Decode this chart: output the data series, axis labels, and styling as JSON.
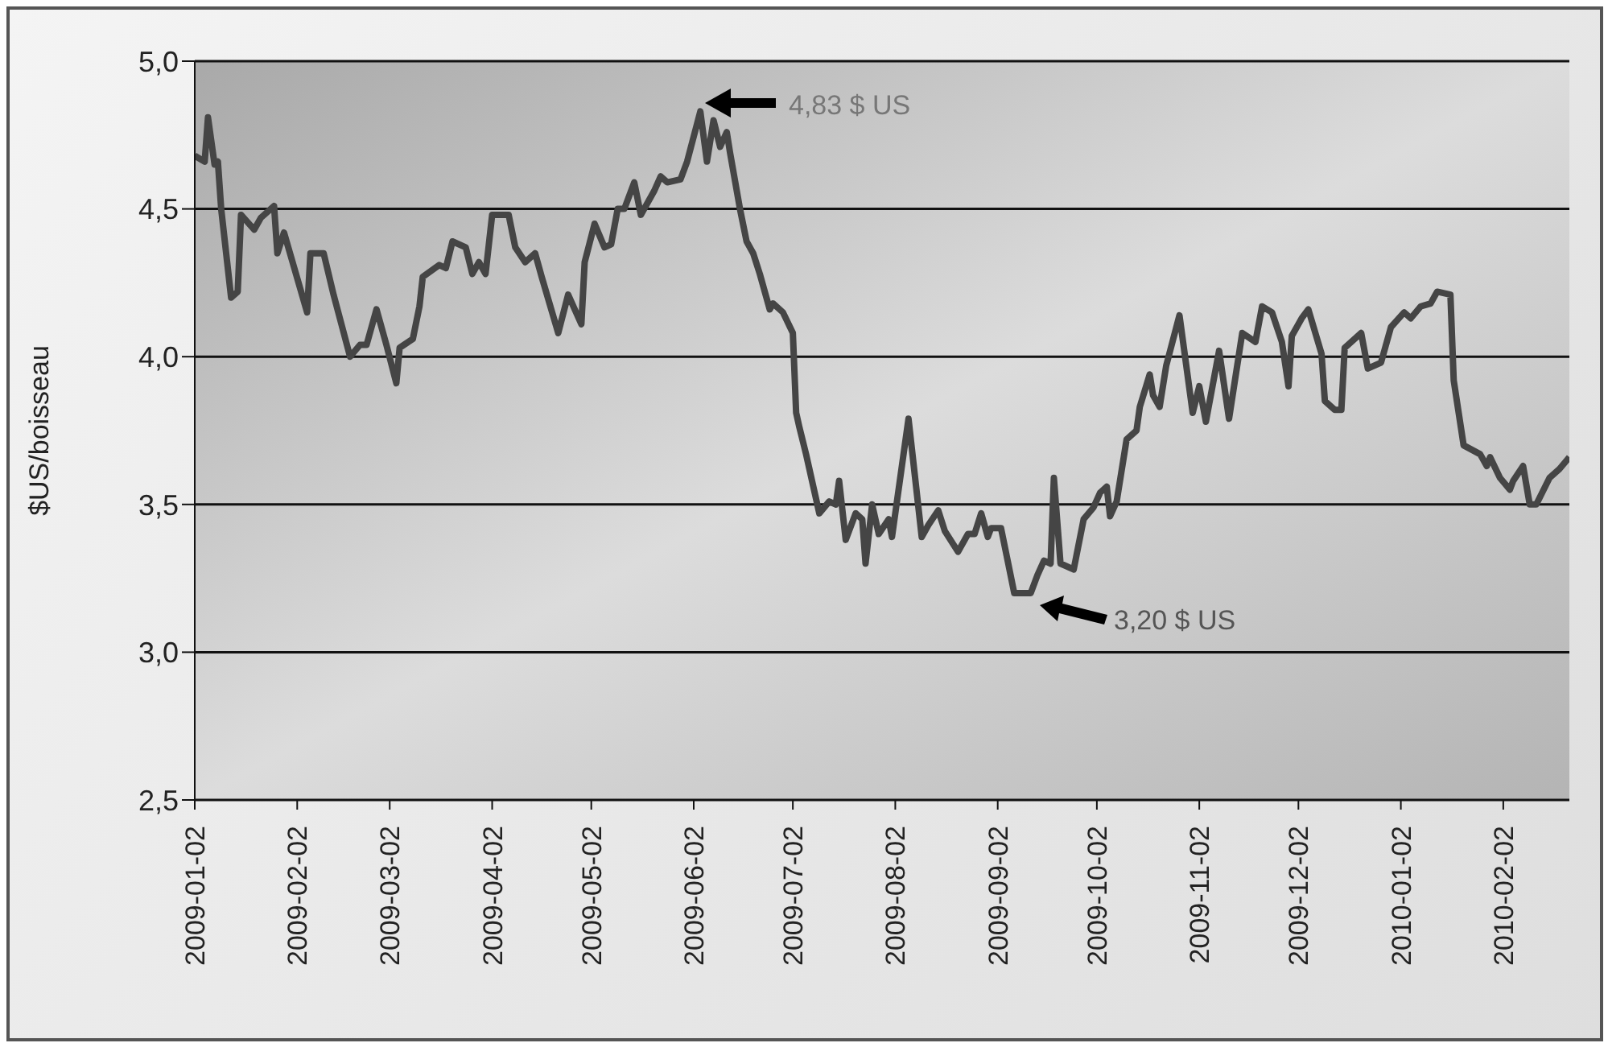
{
  "chart_data": {
    "type": "line",
    "ylabel": "$US/boisseau",
    "x": [
      "2009-01-02",
      "2009-01-05",
      "2009-01-06",
      "2009-01-08",
      "2009-01-09",
      "2009-01-10",
      "2009-01-13",
      "2009-01-15",
      "2009-01-16",
      "2009-01-20",
      "2009-01-22",
      "2009-01-26",
      "2009-01-27",
      "2009-01-29",
      "2009-02-05",
      "2009-02-06",
      "2009-02-10",
      "2009-02-13",
      "2009-02-18",
      "2009-02-21",
      "2009-02-23",
      "2009-02-26",
      "2009-03-01",
      "2009-03-04",
      "2009-03-05",
      "2009-03-09",
      "2009-03-11",
      "2009-03-12",
      "2009-03-17",
      "2009-03-19",
      "2009-03-21",
      "2009-03-25",
      "2009-03-27",
      "2009-03-29",
      "2009-03-31",
      "2009-04-02",
      "2009-04-04",
      "2009-04-07",
      "2009-04-09",
      "2009-04-12",
      "2009-04-15",
      "2009-04-17",
      "2009-04-22",
      "2009-04-25",
      "2009-04-29",
      "2009-04-30",
      "2009-05-03",
      "2009-05-06",
      "2009-05-08",
      "2009-05-10",
      "2009-05-12",
      "2009-05-15",
      "2009-05-17",
      "2009-05-21",
      "2009-05-23",
      "2009-05-25",
      "2009-05-29",
      "2009-05-31",
      "2009-06-04",
      "2009-06-06",
      "2009-06-08",
      "2009-06-10",
      "2009-06-12",
      "2009-06-13",
      "2009-06-16",
      "2009-06-18",
      "2009-06-20",
      "2009-06-22",
      "2009-06-25",
      "2009-06-26",
      "2009-06-29",
      "2009-07-02",
      "2009-07-03",
      "2009-07-04",
      "2009-07-06",
      "2009-07-10",
      "2009-07-13",
      "2009-07-15",
      "2009-07-16",
      "2009-07-18",
      "2009-07-21",
      "2009-07-23",
      "2009-07-24",
      "2009-07-26",
      "2009-07-28",
      "2009-07-31",
      "2009-08-01",
      "2009-08-06",
      "2009-08-10",
      "2009-08-12",
      "2009-08-15",
      "2009-08-17",
      "2009-08-21",
      "2009-08-24",
      "2009-08-26",
      "2009-08-28",
      "2009-08-30",
      "2009-08-31",
      "2009-09-03",
      "2009-09-05",
      "2009-09-07",
      "2009-09-12",
      "2009-09-14",
      "2009-09-16",
      "2009-09-18",
      "2009-09-19",
      "2009-09-21",
      "2009-09-25",
      "2009-09-28",
      "2009-10-01",
      "2009-10-03",
      "2009-10-05",
      "2009-10-06",
      "2009-10-08",
      "2009-10-11",
      "2009-10-14",
      "2009-10-15",
      "2009-10-18",
      "2009-10-19",
      "2009-10-21",
      "2009-10-23",
      "2009-10-27",
      "2009-10-31",
      "2009-11-02",
      "2009-11-04",
      "2009-11-08",
      "2009-11-11",
      "2009-11-15",
      "2009-11-19",
      "2009-11-21",
      "2009-11-24",
      "2009-11-27",
      "2009-11-29",
      "2009-11-30",
      "2009-12-03",
      "2009-12-05",
      "2009-12-09",
      "2009-12-10",
      "2009-12-13",
      "2009-12-15",
      "2009-12-16",
      "2009-12-21",
      "2009-12-23",
      "2009-12-27",
      "2009-12-30",
      "2010-01-03",
      "2010-01-05",
      "2010-01-08",
      "2010-01-11",
      "2010-01-13",
      "2010-01-17",
      "2010-01-18",
      "2010-01-21",
      "2010-01-26",
      "2010-01-28",
      "2010-01-29",
      "2010-02-01",
      "2010-02-04",
      "2010-02-05",
      "2010-02-08",
      "2010-02-10",
      "2010-02-12",
      "2010-02-16",
      "2010-02-19",
      "2010-02-22"
    ],
    "series": [
      {
        "color": "#454545",
        "values": [
          4.68,
          4.66,
          4.81,
          4.65,
          4.66,
          4.5,
          4.2,
          4.22,
          4.48,
          4.43,
          4.47,
          4.51,
          4.35,
          4.42,
          4.15,
          4.35,
          4.35,
          4.21,
          4.0,
          4.04,
          4.04,
          4.16,
          4.04,
          3.91,
          4.03,
          4.06,
          4.17,
          4.27,
          4.31,
          4.3,
          4.39,
          4.37,
          4.28,
          4.32,
          4.28,
          4.48,
          4.48,
          4.48,
          4.37,
          4.32,
          4.35,
          4.27,
          4.08,
          4.21,
          4.11,
          4.32,
          4.45,
          4.37,
          4.38,
          4.5,
          4.5,
          4.59,
          4.48,
          4.56,
          4.61,
          4.59,
          4.6,
          4.66,
          4.83,
          4.66,
          4.8,
          4.71,
          4.76,
          4.69,
          4.5,
          4.39,
          4.35,
          4.28,
          4.16,
          4.18,
          4.15,
          4.08,
          3.81,
          3.76,
          3.67,
          3.47,
          3.51,
          3.5,
          3.58,
          3.38,
          3.47,
          3.45,
          3.3,
          3.5,
          3.4,
          3.45,
          3.39,
          3.79,
          3.39,
          3.43,
          3.48,
          3.41,
          3.34,
          3.4,
          3.4,
          3.47,
          3.39,
          3.42,
          3.42,
          3.31,
          3.2,
          3.2,
          3.26,
          3.31,
          3.3,
          3.59,
          3.3,
          3.28,
          3.45,
          3.49,
          3.54,
          3.56,
          3.46,
          3.51,
          3.72,
          3.75,
          3.83,
          3.94,
          3.87,
          3.83,
          3.97,
          4.14,
          3.81,
          3.9,
          3.78,
          4.02,
          3.79,
          4.08,
          4.05,
          4.17,
          4.15,
          4.05,
          3.9,
          4.07,
          4.13,
          4.16,
          4.01,
          3.85,
          3.82,
          3.82,
          4.03,
          4.08,
          3.96,
          3.98,
          4.1,
          4.15,
          4.13,
          4.17,
          4.18,
          4.22,
          4.21,
          3.92,
          3.7,
          3.67,
          3.63,
          3.66,
          3.59,
          3.55,
          3.58,
          3.63,
          3.5,
          3.5,
          3.59,
          3.62,
          3.66
        ]
      }
    ],
    "xlim": [
      "2009-01-02",
      "2010-02-22"
    ],
    "xticks": [
      "2009-01-02",
      "2009-02-02",
      "2009-03-02",
      "2009-04-02",
      "2009-05-02",
      "2009-06-02",
      "2009-07-02",
      "2009-08-02",
      "2009-09-02",
      "2009-10-02",
      "2009-11-02",
      "2009-12-02",
      "2010-01-02",
      "2010-02-02"
    ],
    "ylim": [
      2.5,
      5
    ],
    "yticks": [
      {
        "value": 2.5,
        "label": "2,5"
      },
      {
        "value": 3,
        "label": "3,0"
      },
      {
        "value": 3.5,
        "label": "3,5"
      },
      {
        "value": 4,
        "label": "4,0"
      },
      {
        "value": 4.5,
        "label": "4,5"
      },
      {
        "value": 5,
        "label": "5,0"
      }
    ],
    "grid": "y",
    "legend": false,
    "marker": "none",
    "line_style": "solid",
    "annotations": [
      "4,83 $ US",
      "3,20 $ US"
    ]
  }
}
